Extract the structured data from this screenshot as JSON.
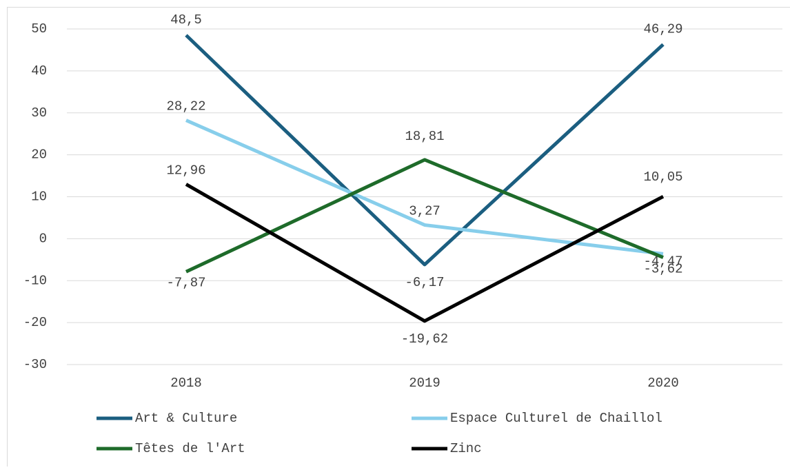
{
  "chart_data": {
    "type": "line",
    "categories": [
      "2018",
      "2019",
      "2020"
    ],
    "series": [
      {
        "name": "Art & Culture",
        "color": "#1b5e80",
        "values": [
          48.5,
          -6.17,
          46.29
        ],
        "value_labels": [
          "48,5",
          "-6,17",
          "46,29"
        ]
      },
      {
        "name": "Espace Culturel de Chaillol",
        "color": "#87ceeb",
        "values": [
          28.22,
          3.27,
          -3.62
        ],
        "value_labels": [
          "28,22",
          "3,27",
          "-3,62"
        ]
      },
      {
        "name": "Têtes de l'Art",
        "color": "#1e6b2a",
        "values": [
          -7.87,
          18.81,
          -4.47
        ],
        "value_labels": [
          "-7,87",
          "18,81",
          "-4,47"
        ]
      },
      {
        "name": "Zinc",
        "color": "#000000",
        "values": [
          12.96,
          -19.62,
          10.05
        ],
        "value_labels": [
          "12,96",
          "-19,62",
          "10,05"
        ]
      }
    ],
    "ylim": [
      -30,
      50
    ],
    "yticks": [
      -30,
      -20,
      -10,
      0,
      10,
      20,
      30,
      40,
      50
    ],
    "grid": true,
    "legend": "bottom"
  }
}
